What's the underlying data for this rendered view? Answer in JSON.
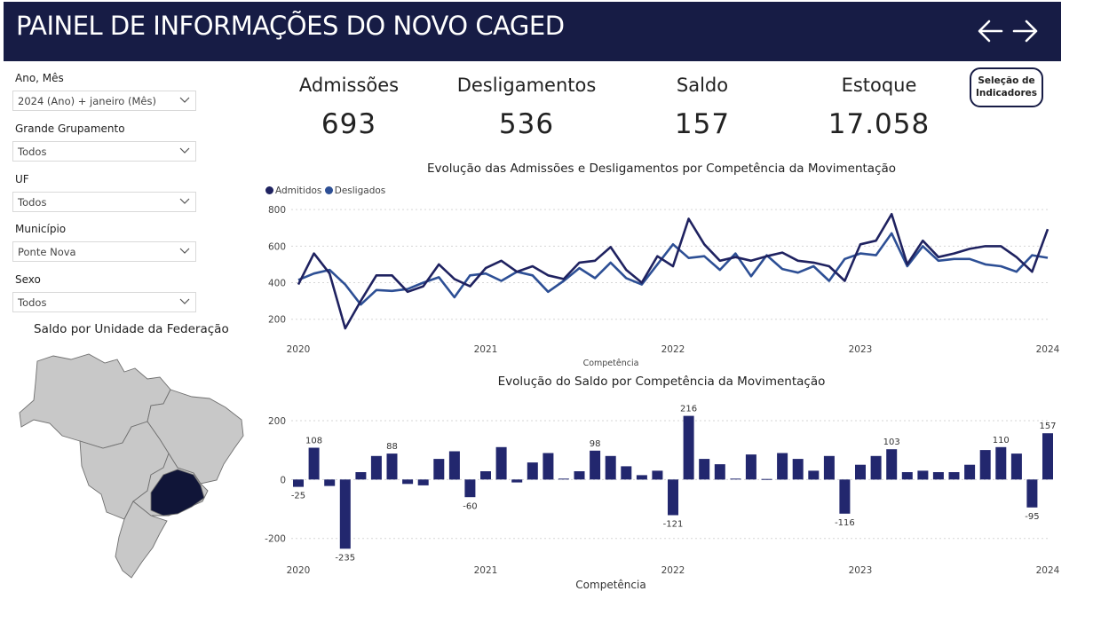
{
  "header": {
    "title": "PAINEL DE INFORMAÇÕES DO NOVO CAGED"
  },
  "filters": [
    {
      "label": "Ano, Mês",
      "value": "2024 (Ano) + janeiro (Mês)"
    },
    {
      "label": "Grande Grupamento",
      "value": "Todos"
    },
    {
      "label": "UF",
      "value": "Todos"
    },
    {
      "label": "Município",
      "value": "Ponte Nova"
    },
    {
      "label": "Sexo",
      "value": "Todos"
    }
  ],
  "kpis": [
    {
      "label": "Admissões",
      "value": "693"
    },
    {
      "label": "Desligamentos",
      "value": "536"
    },
    {
      "label": "Saldo",
      "value": "157"
    },
    {
      "label": "Estoque",
      "value": "17.058"
    }
  ],
  "indicators_button": {
    "line1": "Seleção de",
    "line2": "Indicadores"
  },
  "map": {
    "title": "Saldo por Unidade da Federação",
    "highlight_color": "#101538",
    "base_color": "#c8c8c8"
  },
  "colors": {
    "header": "#171c45",
    "admitidos": "#1f2260",
    "desligados": "#2d4f95",
    "bars": "#22276e"
  },
  "chart_data": [
    {
      "type": "line",
      "title": "Evolução das Admissões e Desligamentos por Competência da Movimentação",
      "xlabel": "Competência",
      "ylabel": "",
      "x_ticks": [
        "2020",
        "2021",
        "2022",
        "2023",
        "2024"
      ],
      "y_ticks": [
        200,
        400,
        600,
        800
      ],
      "ylim": [
        150,
        830
      ],
      "grid": true,
      "legend": "top-left",
      "series": [
        {
          "name": "Admitidos",
          "values": [
            390,
            560,
            450,
            150,
            300,
            440,
            440,
            350,
            380,
            500,
            420,
            380,
            480,
            520,
            460,
            490,
            440,
            420,
            510,
            520,
            595,
            470,
            400,
            545,
            490,
            750,
            610,
            520,
            540,
            520,
            545,
            565,
            520,
            510,
            490,
            410,
            610,
            630,
            775,
            500,
            630,
            540,
            560,
            585,
            600,
            600,
            540,
            460,
            693
          ]
        },
        {
          "name": "Desligados",
          "values": [
            415,
            450,
            470,
            390,
            280,
            360,
            355,
            365,
            400,
            430,
            320,
            440,
            450,
            410,
            460,
            440,
            350,
            410,
            480,
            425,
            510,
            425,
            390,
            500,
            610,
            535,
            545,
            470,
            560,
            435,
            550,
            475,
            455,
            490,
            410,
            530,
            560,
            550,
            670,
            490,
            600,
            520,
            530,
            530,
            500,
            490,
            460,
            550,
            536
          ]
        }
      ]
    },
    {
      "type": "bar",
      "title": "Evolução do Saldo por Competência da Movimentação",
      "xlabel": "Competência",
      "ylabel": "",
      "x_ticks": [
        "2020",
        "2021",
        "2022",
        "2023",
        "2024"
      ],
      "y_ticks": [
        -200,
        0,
        200
      ],
      "ylim": [
        -240,
        230
      ],
      "grid": true,
      "values": [
        -25,
        108,
        -22,
        -235,
        25,
        80,
        88,
        -15,
        -20,
        70,
        96,
        -60,
        28,
        110,
        -10,
        58,
        90,
        3,
        28,
        98,
        80,
        45,
        15,
        30,
        -121,
        216,
        70,
        52,
        3,
        85,
        2,
        90,
        70,
        30,
        80,
        -116,
        50,
        80,
        103,
        25,
        30,
        25,
        25,
        50,
        100,
        110,
        88,
        -95,
        157
      ],
      "labeled_indices": [
        0,
        1,
        3,
        6,
        11,
        19,
        24,
        25,
        35,
        38,
        45,
        47,
        48
      ]
    }
  ]
}
